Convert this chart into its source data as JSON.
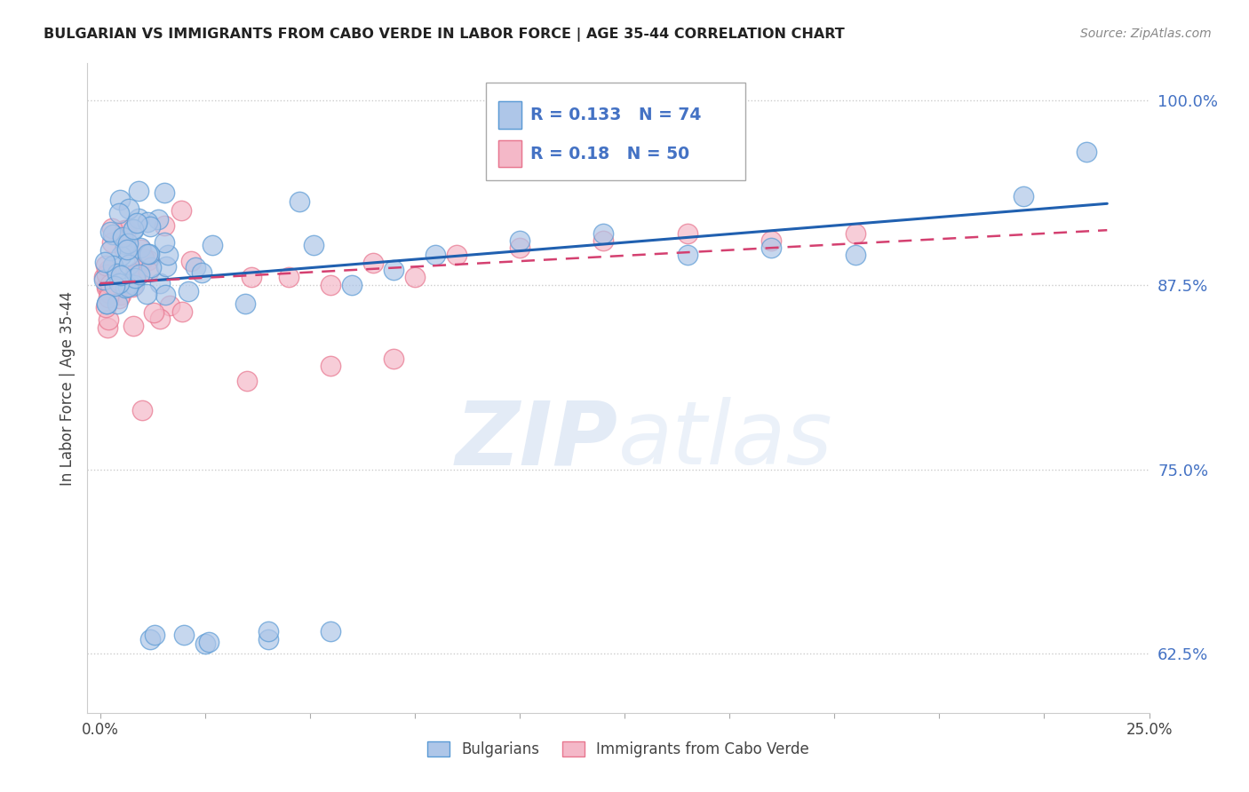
{
  "title": "BULGARIAN VS IMMIGRANTS FROM CABO VERDE IN LABOR FORCE | AGE 35-44 CORRELATION CHART",
  "source": "Source: ZipAtlas.com",
  "xlabel_bulgarians": "Bulgarians",
  "xlabel_cabo_verde": "Immigrants from Cabo Verde",
  "ylabel": "In Labor Force | Age 35-44",
  "xlim": [
    0.0,
    0.25
  ],
  "ylim": [
    0.585,
    1.025
  ],
  "yticks": [
    0.625,
    0.75,
    0.875,
    1.0
  ],
  "ytick_labels": [
    "62.5%",
    "75.0%",
    "87.5%",
    "100.0%"
  ],
  "R_blue": 0.133,
  "N_blue": 74,
  "R_pink": 0.18,
  "N_pink": 50,
  "blue_fill": "#aec6e8",
  "blue_edge": "#5b9bd5",
  "pink_fill": "#f4b8c8",
  "pink_edge": "#e8768f",
  "blue_line_color": "#2060b0",
  "pink_line_color": "#d44070",
  "watermark_zip": "ZIP",
  "watermark_atlas": "atlas",
  "grid_color": "#cccccc",
  "title_color": "#222222",
  "source_color": "#888888",
  "ylabel_color": "#444444",
  "ytick_color": "#4472c4",
  "legend_box_edge": "#aaaaaa"
}
